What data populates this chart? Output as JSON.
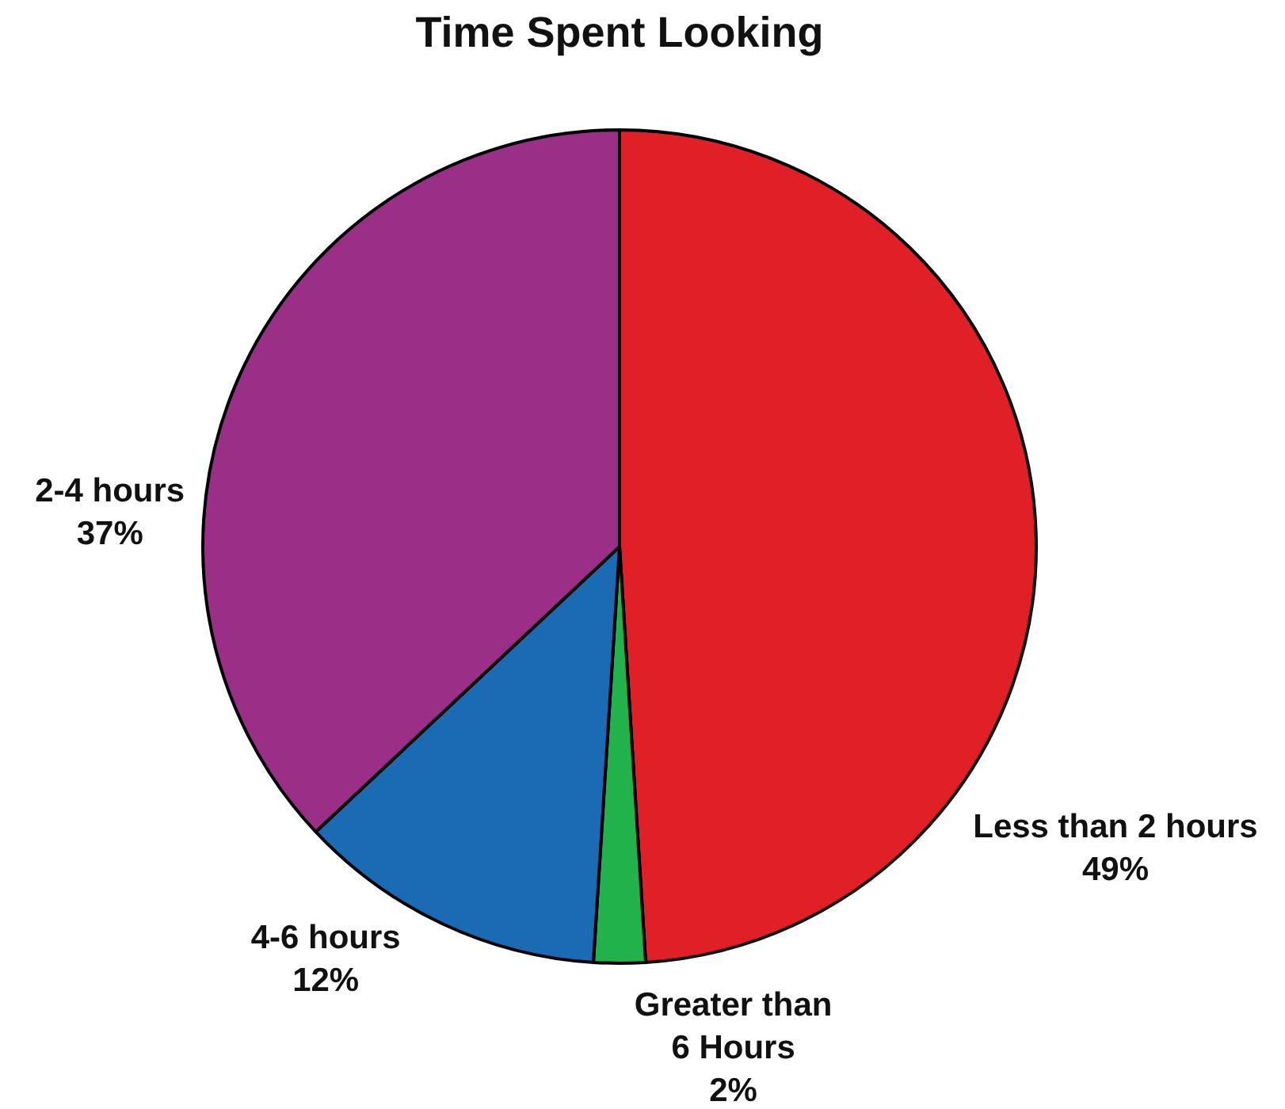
{
  "chart_data": {
    "type": "pie",
    "title": "Time Spent Looking",
    "categories": [
      "Less than 2 hours",
      "Greater than 6 Hours",
      "4-6 hours",
      "2-4 hours"
    ],
    "values": [
      49,
      2,
      12,
      37
    ],
    "colors": [
      "#e11f26",
      "#22b24c",
      "#1a6ab4",
      "#9b2f88"
    ],
    "value_labels": [
      "49%",
      "2%",
      "12%",
      "37%"
    ],
    "legend": false
  }
}
